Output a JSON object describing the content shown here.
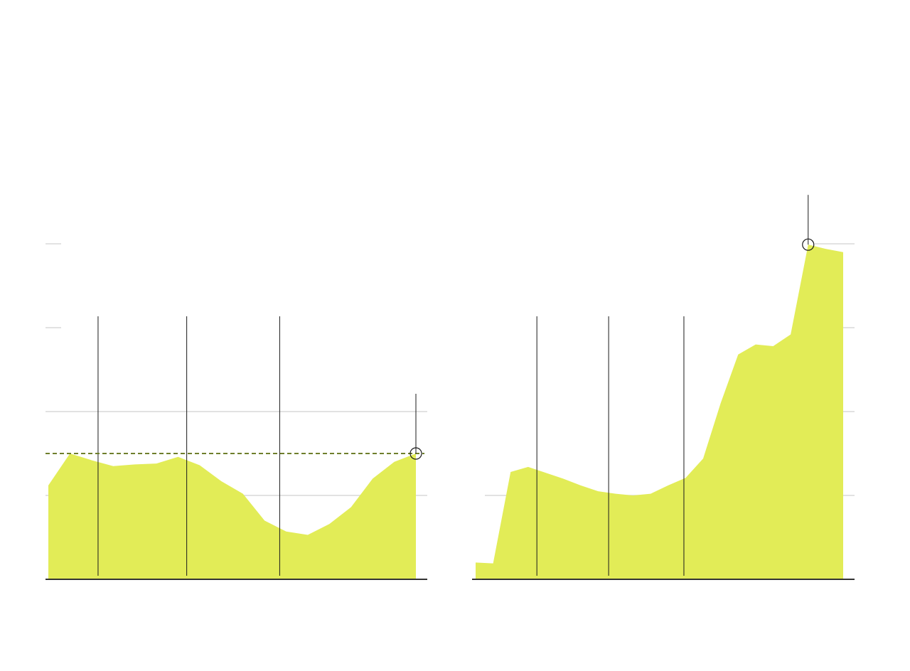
{
  "colors": {
    "area_fill": "#e2ec57",
    "gridline": "#d9d9d9",
    "baseline": "#333333",
    "marker_line": "#1a1a1a",
    "reference_line": "#6f7f2c",
    "highlight_ring": "#1a1a1a"
  },
  "chart_data": [
    {
      "type": "area",
      "title": "",
      "xlabel": "",
      "ylabel": "",
      "x": [
        1,
        2,
        3,
        4,
        5,
        6,
        7,
        8,
        9,
        10,
        11,
        12,
        13,
        14,
        15,
        16,
        17,
        18
      ],
      "values": [
        1.12,
        1.5,
        1.42,
        1.35,
        1.37,
        1.38,
        1.46,
        1.36,
        1.17,
        1.02,
        0.7,
        0.57,
        0.53,
        0.66,
        0.86,
        1.2,
        1.4,
        1.5
      ],
      "ylim": [
        0,
        4
      ],
      "gridlines": [
        1,
        2,
        3,
        4
      ],
      "reference_line": 1.5,
      "vertical_markers": [
        3.3,
        7.4,
        11.7
      ],
      "highlight_point_index": 17,
      "grid": true
    },
    {
      "type": "area",
      "title": "",
      "xlabel": "",
      "ylabel": "",
      "x": [
        1,
        2,
        3,
        4,
        5,
        6,
        7,
        8,
        9,
        10,
        11,
        12,
        13,
        14,
        15,
        16,
        17,
        18,
        19,
        20,
        21,
        22
      ],
      "values": [
        0.2,
        0.19,
        1.28,
        1.34,
        1.27,
        1.2,
        1.12,
        1.05,
        1.02,
        1.0,
        1.02,
        1.12,
        1.21,
        1.44,
        2.1,
        2.68,
        2.8,
        2.78,
        2.92,
        3.99,
        3.94,
        3.9
      ],
      "ylim": [
        0,
        4
      ],
      "gridlines": [
        1,
        2,
        3,
        4
      ],
      "vertical_markers": [
        4.5,
        8.6,
        12.9
      ],
      "highlight_point_index": 19,
      "grid": true
    }
  ]
}
